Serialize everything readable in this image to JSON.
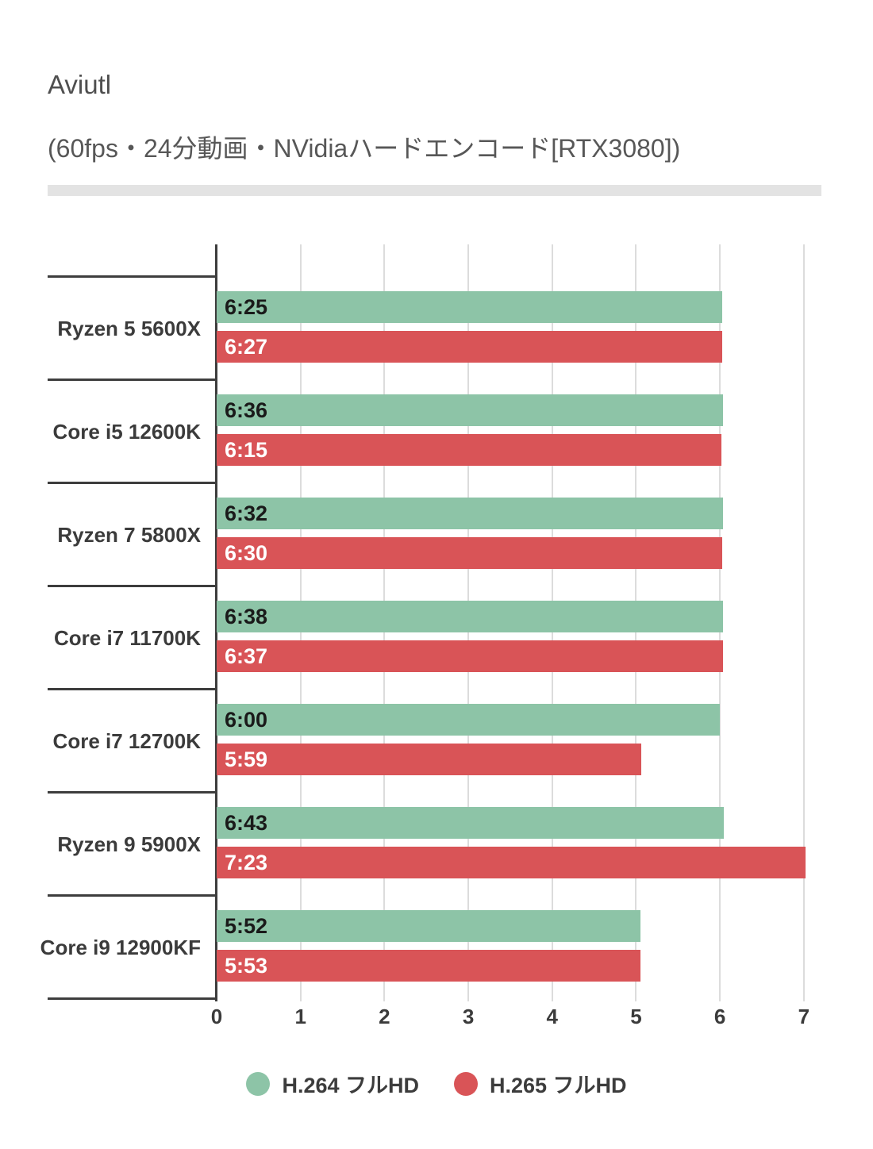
{
  "header": {
    "title": "Aviutl",
    "subtitle": "(60fps・24分動画・NVidiaハードエンコード[RTX3080])"
  },
  "chart_data": {
    "type": "bar",
    "orientation": "horizontal",
    "title": "Aviutl",
    "subtitle": "(60fps・24分動画・NVidiaハードエンコード[RTX3080])",
    "value_format": "m:ss (encode time, shorter is better)",
    "categories": [
      "Ryzen 5 5600X",
      "Core i5 12600K",
      "Ryzen 7 5800X",
      "Core i7 11700K",
      "Core i7 12700K",
      "Ryzen 9 5900X",
      "Core i9 12900KF"
    ],
    "series": [
      {
        "name": "H.264 フルHD",
        "color": "#8dc4a7",
        "label_color": "#1a1a1a",
        "labels": [
          "6:25",
          "6:36",
          "6:32",
          "6:38",
          "6:00",
          "6:43",
          "5:52"
        ],
        "values": [
          6.025,
          6.036,
          6.032,
          6.038,
          6.0,
          6.043,
          5.052
        ]
      },
      {
        "name": "H.265 フルHD",
        "color": "#d95457",
        "label_color": "#ffffff",
        "labels": [
          "6:27",
          "6:15",
          "6:30",
          "6:37",
          "5:59",
          "7:23",
          "5:53"
        ],
        "values": [
          6.027,
          6.015,
          6.03,
          6.037,
          5.059,
          7.023,
          5.053
        ]
      }
    ],
    "xlim": [
      0,
      7.2
    ],
    "xticks": [
      "0",
      "1",
      "2",
      "3",
      "4",
      "5",
      "6",
      "7"
    ],
    "grid": "vertical",
    "legend_position": "bottom",
    "axis_color": "#3d3d3d",
    "grid_color": "#dcdcdc",
    "background_color": "#ffffff"
  }
}
